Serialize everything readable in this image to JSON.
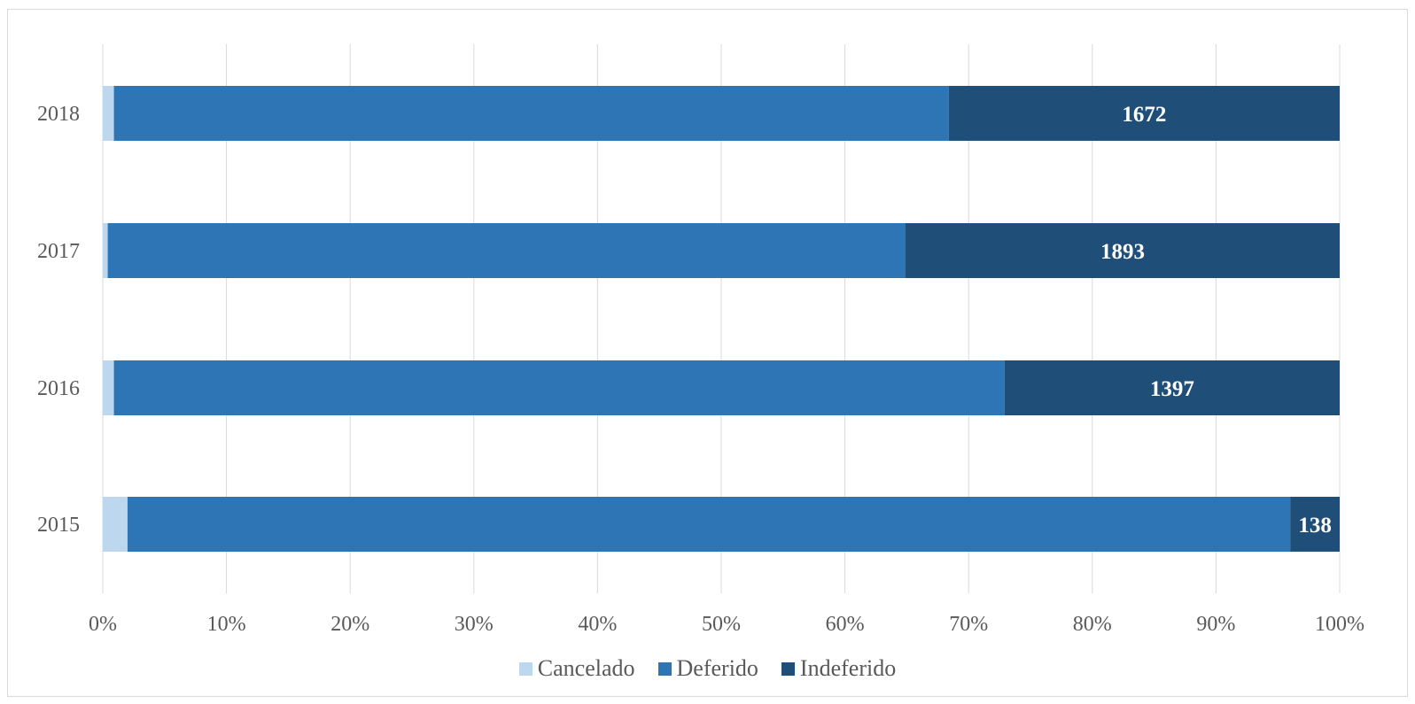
{
  "chart_data": {
    "type": "bar",
    "orientation": "horizontal",
    "stacked": "percent",
    "categories": [
      "2018",
      "2017",
      "2016",
      "2015"
    ],
    "series": [
      {
        "name": "Cancelado",
        "color": "#bdd7ee",
        "values_pct": [
          0.9,
          0.4,
          0.9,
          2.0
        ]
      },
      {
        "name": "Deferido",
        "color": "#2e75b6",
        "values_pct": [
          67.5,
          64.5,
          72.0,
          94.0
        ]
      },
      {
        "name": "Indeferido",
        "color": "#1f4e79",
        "values_pct": [
          31.6,
          35.1,
          27.1,
          4.0
        ],
        "labels": [
          "1672",
          "1893",
          "1397",
          "138"
        ]
      }
    ],
    "xticks": [
      "0%",
      "10%",
      "20%",
      "30%",
      "40%",
      "50%",
      "60%",
      "70%",
      "80%",
      "90%",
      "100%"
    ],
    "xlim": [
      0,
      100
    ],
    "grid": "vertical",
    "legend_position": "bottom",
    "title": "",
    "xlabel": "",
    "ylabel": ""
  }
}
